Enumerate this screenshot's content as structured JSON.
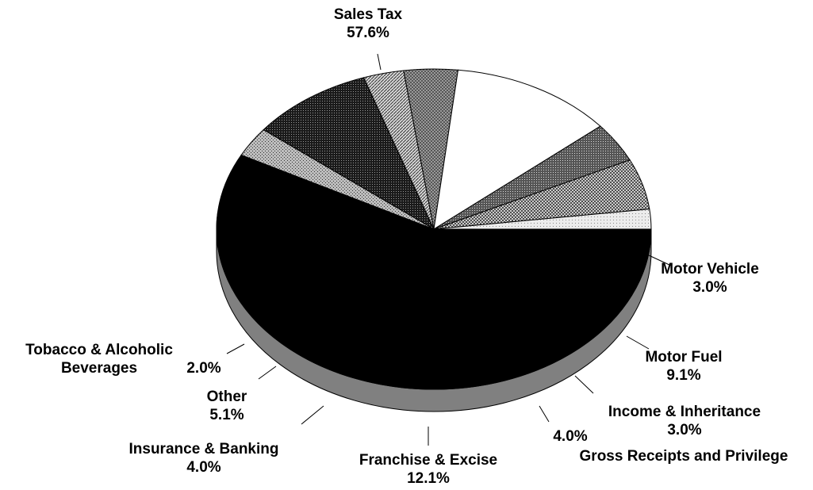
{
  "chart_data": {
    "type": "pie",
    "title": "",
    "slices": [
      {
        "label": "Sales Tax",
        "value": 57.6,
        "value_label": "57.6%",
        "fill": "solid-black",
        "label_lines": [
          "Sales Tax"
        ]
      },
      {
        "label": "Motor Vehicle",
        "value": 3.0,
        "value_label": "3.0%",
        "fill": "fine-dots-gray",
        "label_lines": [
          "Motor Vehicle"
        ]
      },
      {
        "label": "Motor Fuel",
        "value": 9.1,
        "value_label": "9.1%",
        "fill": "dense-dark-dots",
        "label_lines": [
          "Motor Fuel"
        ]
      },
      {
        "label": "Income & Inheritance",
        "value": 3.0,
        "value_label": "3.0%",
        "fill": "light-diagonal",
        "label_lines": [
          "Income & Inheritance"
        ]
      },
      {
        "label": "Gross Receipts and Privilege",
        "value": 4.0,
        "value_label": "4.0%",
        "fill": "dark-crosshatch",
        "label_lines": [
          "Gross Receipts and Privilege"
        ]
      },
      {
        "label": "Franchise & Excise",
        "value": 12.1,
        "value_label": "12.1%",
        "fill": "white",
        "label_lines": [
          "Franchise & Excise"
        ]
      },
      {
        "label": "Insurance & Banking",
        "value": 4.0,
        "value_label": "4.0%",
        "fill": "dark-dots",
        "label_lines": [
          "Insurance & Banking"
        ]
      },
      {
        "label": "Other",
        "value": 5.1,
        "value_label": "5.1%",
        "fill": "light-crosshatch",
        "label_lines": [
          "Other"
        ]
      },
      {
        "label": "Tobacco & Alcoholic Beverages",
        "value": 2.0,
        "value_label": "2.0%",
        "fill": "very-light-dots",
        "label_lines": [
          "Tobacco & Alcoholic",
          "Beverages"
        ]
      }
    ],
    "side_color": "#808080",
    "outline_color": "#000000"
  }
}
